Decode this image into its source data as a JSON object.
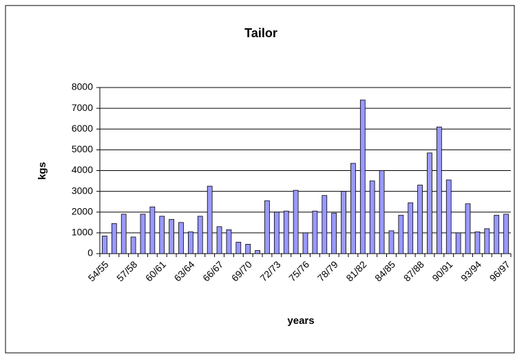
{
  "chart_data": {
    "type": "bar",
    "title": "Tailor",
    "xlabel": "years",
    "ylabel": "kgs",
    "categories": [
      "54/55",
      null,
      null,
      "57/58",
      null,
      null,
      "60/61",
      null,
      null,
      "63/64",
      null,
      null,
      "66/67",
      null,
      null,
      "69/70",
      null,
      null,
      "72/73",
      null,
      null,
      "75/76",
      null,
      null,
      "78/79",
      null,
      null,
      "81/82",
      null,
      null,
      "84/85",
      null,
      null,
      "87/88",
      null,
      null,
      "90/91",
      null,
      null,
      "93/94",
      null,
      null,
      "96/97"
    ],
    "values": [
      850,
      1450,
      1900,
      800,
      1900,
      2250,
      1800,
      1650,
      1500,
      1050,
      1800,
      3250,
      1300,
      1150,
      550,
      450,
      150,
      2550,
      2000,
      2050,
      3050,
      1000,
      2050,
      2800,
      1950,
      3000,
      4350,
      7400,
      3500,
      4000,
      1100,
      1850,
      2450,
      3300,
      4850,
      6100,
      3550,
      1000,
      2400,
      1050,
      1200,
      1850,
      1900
    ],
    "color": "#9999ff",
    "ylim": [
      0,
      8000
    ],
    "yticks": [
      0,
      1000,
      2000,
      3000,
      4000,
      5000,
      6000,
      7000,
      8000
    ],
    "grid": true
  }
}
